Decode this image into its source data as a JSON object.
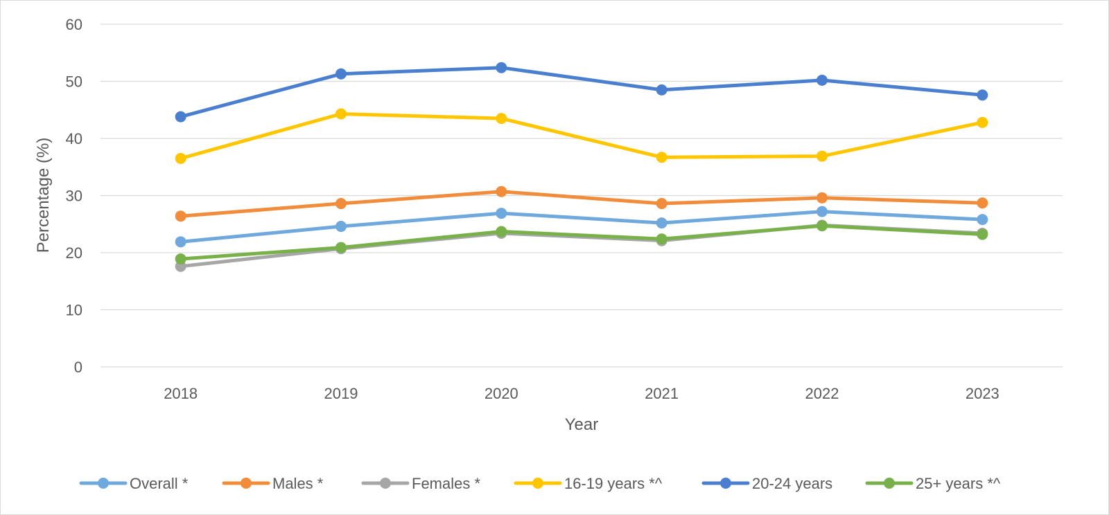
{
  "chart_data": {
    "type": "line",
    "title": "",
    "xlabel": "Year",
    "ylabel": "Percentage (%)",
    "x": [
      "2018",
      "2019",
      "2020",
      "2021",
      "2022",
      "2023"
    ],
    "ylim": [
      0,
      60
    ],
    "yticks": [
      0,
      10,
      20,
      30,
      40,
      50,
      60
    ],
    "grid": true,
    "legend_position": "bottom",
    "series": [
      {
        "name": "Overall *",
        "color": "#6fa8dc",
        "values": [
          21.9,
          24.6,
          26.9,
          25.2,
          27.2,
          25.8
        ]
      },
      {
        "name": "Males *",
        "color": "#f08c3a",
        "values": [
          26.4,
          28.6,
          30.7,
          28.6,
          29.6,
          28.7
        ]
      },
      {
        "name": "Females *",
        "color": "#a6a6a6",
        "values": [
          17.6,
          20.7,
          23.4,
          22.1,
          24.8,
          23.4
        ]
      },
      {
        "name": "16-19 years *^",
        "color": "#ffc600",
        "values": [
          36.5,
          44.3,
          43.5,
          36.7,
          36.9,
          42.8
        ]
      },
      {
        "name": "20-24 years",
        "color": "#4a7fcf",
        "values": [
          43.8,
          51.3,
          52.4,
          48.5,
          50.2,
          47.6
        ]
      },
      {
        "name": "25+ years *^",
        "color": "#78b04a",
        "values": [
          18.9,
          20.9,
          23.7,
          22.4,
          24.7,
          23.2
        ]
      }
    ]
  }
}
